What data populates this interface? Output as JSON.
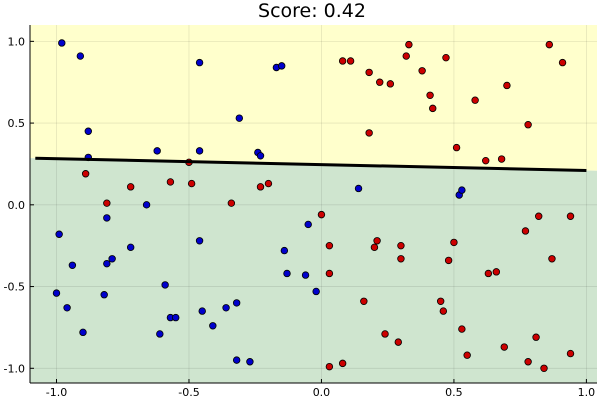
{
  "chart_data": {
    "type": "scatter",
    "title": "Score: 0.42",
    "xlabel": "",
    "ylabel": "",
    "xlim": [
      -1.1,
      1.04
    ],
    "ylim": [
      -1.09,
      1.1
    ],
    "x_ticks": [
      -1.0,
      -0.5,
      0.0,
      0.5,
      1.0
    ],
    "x_tick_labels": [
      "-1.0",
      "-0.5",
      "0.0",
      "0.5",
      "1.0"
    ],
    "y_ticks": [
      -1.0,
      -0.5,
      0.0,
      0.5,
      1.0
    ],
    "y_tick_labels": [
      "-1.0",
      "-0.5",
      "0.0",
      "0.5",
      "1.0"
    ],
    "grid": true,
    "legend": "none",
    "colors": {
      "upper_region": "#ffffcc",
      "lower_region": "#cfe5cf",
      "class_blue": "#0000cc",
      "class_red": "#cc0000",
      "boundary": "#000000"
    },
    "decision_boundary": {
      "x": [
        -1.08,
        1.0
      ],
      "y": [
        0.285,
        0.21
      ]
    },
    "series": [
      {
        "color": "#0000cc",
        "points": [
          [
            -0.98,
            0.99
          ],
          [
            -0.91,
            0.91
          ],
          [
            -0.88,
            0.45
          ],
          [
            -0.88,
            0.29
          ],
          [
            -0.62,
            0.33
          ],
          [
            -0.46,
            0.33
          ],
          [
            -0.46,
            0.87
          ],
          [
            -0.31,
            0.53
          ],
          [
            -0.24,
            0.32
          ],
          [
            -0.23,
            0.3
          ],
          [
            -0.17,
            0.84
          ],
          [
            -0.15,
            0.85
          ],
          [
            0.14,
            0.1
          ],
          [
            0.52,
            0.06
          ],
          [
            0.53,
            0.09
          ],
          [
            -0.99,
            -0.18
          ],
          [
            -0.96,
            -0.63
          ],
          [
            -0.94,
            -0.37
          ],
          [
            -1.0,
            -0.54
          ],
          [
            -0.9,
            -0.78
          ],
          [
            -0.82,
            -0.55
          ],
          [
            -0.81,
            -0.08
          ],
          [
            -0.81,
            -0.36
          ],
          [
            -0.79,
            -0.33
          ],
          [
            -0.72,
            -0.26
          ],
          [
            -0.66,
            0.0
          ],
          [
            -0.59,
            -0.49
          ],
          [
            -0.61,
            -0.79
          ],
          [
            -0.57,
            -0.69
          ],
          [
            -0.55,
            -0.69
          ],
          [
            -0.46,
            -0.22
          ],
          [
            -0.45,
            -0.65
          ],
          [
            -0.41,
            -0.74
          ],
          [
            -0.36,
            -0.63
          ],
          [
            -0.32,
            -0.6
          ],
          [
            -0.32,
            -0.95
          ],
          [
            -0.27,
            -0.96
          ],
          [
            -0.14,
            -0.28
          ],
          [
            -0.13,
            -0.42
          ],
          [
            -0.06,
            -0.43
          ],
          [
            -0.05,
            -0.12
          ],
          [
            -0.02,
            -0.53
          ]
        ]
      },
      {
        "color": "#cc0000",
        "points": [
          [
            -0.89,
            0.19
          ],
          [
            -0.81,
            0.01
          ],
          [
            -0.72,
            0.11
          ],
          [
            -0.57,
            0.14
          ],
          [
            -0.5,
            0.26
          ],
          [
            -0.49,
            0.13
          ],
          [
            -0.34,
            0.01
          ],
          [
            -0.23,
            0.11
          ],
          [
            -0.2,
            0.13
          ],
          [
            0.0,
            -0.06
          ],
          [
            0.03,
            -0.25
          ],
          [
            0.03,
            -0.42
          ],
          [
            0.03,
            -0.99
          ],
          [
            0.08,
            0.88
          ],
          [
            0.11,
            0.88
          ],
          [
            0.08,
            -0.97
          ],
          [
            0.16,
            -0.59
          ],
          [
            0.18,
            0.81
          ],
          [
            0.18,
            0.44
          ],
          [
            0.2,
            -0.26
          ],
          [
            0.21,
            -0.22
          ],
          [
            0.22,
            0.75
          ],
          [
            0.24,
            -0.79
          ],
          [
            0.26,
            0.74
          ],
          [
            0.29,
            -0.84
          ],
          [
            0.3,
            -0.25
          ],
          [
            0.3,
            -0.33
          ],
          [
            0.32,
            0.91
          ],
          [
            0.33,
            0.98
          ],
          [
            0.38,
            0.82
          ],
          [
            0.41,
            0.67
          ],
          [
            0.42,
            0.59
          ],
          [
            0.45,
            -0.59
          ],
          [
            0.46,
            -0.65
          ],
          [
            0.47,
            0.9
          ],
          [
            0.48,
            -0.34
          ],
          [
            0.5,
            -0.23
          ],
          [
            0.51,
            0.35
          ],
          [
            0.53,
            -0.76
          ],
          [
            0.55,
            -0.92
          ],
          [
            0.58,
            0.64
          ],
          [
            0.62,
            0.27
          ],
          [
            0.63,
            -0.42
          ],
          [
            0.66,
            -0.41
          ],
          [
            0.68,
            0.28
          ],
          [
            0.69,
            -0.87
          ],
          [
            0.7,
            0.73
          ],
          [
            0.77,
            -0.16
          ],
          [
            0.78,
            -0.96
          ],
          [
            0.78,
            0.49
          ],
          [
            0.81,
            -0.81
          ],
          [
            0.82,
            -0.07
          ],
          [
            0.84,
            -1.0
          ],
          [
            0.86,
            0.98
          ],
          [
            0.87,
            -0.33
          ],
          [
            0.91,
            0.87
          ],
          [
            0.94,
            -0.07
          ],
          [
            0.94,
            -0.91
          ]
        ]
      }
    ]
  }
}
